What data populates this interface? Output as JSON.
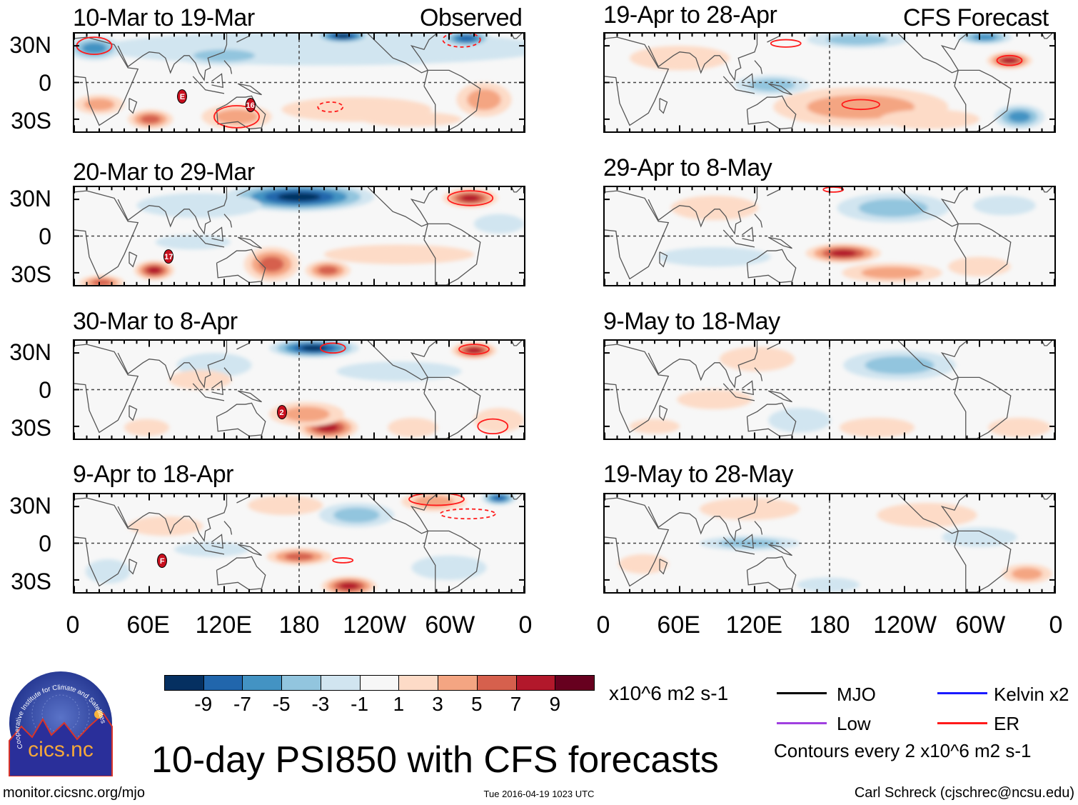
{
  "figure_title": "10-day PSI850 with CFS forecasts",
  "columns": {
    "left_label": "Observed",
    "right_label": "CFS Forecast"
  },
  "panels_left": [
    {
      "title": "10-Mar to 19-Mar",
      "storms": [
        "E",
        "16"
      ]
    },
    {
      "title": "20-Mar to 29-Mar",
      "storms": [
        "17"
      ]
    },
    {
      "title": "30-Mar to 8-Apr",
      "storms": [
        "2"
      ]
    },
    {
      "title": "9-Apr to 18-Apr",
      "storms": [
        "F"
      ]
    }
  ],
  "panels_right": [
    {
      "title": "19-Apr to 28-Apr"
    },
    {
      "title": "29-Apr to 8-May"
    },
    {
      "title": "9-May to 18-May"
    },
    {
      "title": "19-May to 28-May"
    }
  ],
  "y_ticks": [
    "30N",
    "0",
    "30S"
  ],
  "x_ticks": [
    "0",
    "60E",
    "120E",
    "180",
    "120W",
    "60W",
    "0"
  ],
  "colorbar": {
    "labels": [
      "-9",
      "-7",
      "-5",
      "-3",
      "-1",
      "1",
      "3",
      "5",
      "7",
      "9"
    ],
    "colors": [
      "#053061",
      "#2166ac",
      "#4393c3",
      "#92c5de",
      "#d1e5f0",
      "#f7f7f7",
      "#fddbc7",
      "#f4a582",
      "#d6604d",
      "#b2182b",
      "#67001f"
    ],
    "units": "x10^6 m2 s-1"
  },
  "contour_legend": {
    "items": [
      {
        "label": "MJO",
        "color": "#000000"
      },
      {
        "label": "Kelvin x2",
        "color": "#1a1aff"
      },
      {
        "label": "Low",
        "color": "#a040e0"
      },
      {
        "label": "ER",
        "color": "#ff1a1a"
      }
    ],
    "note": "Contours every 2 x10^6 m2 s-1"
  },
  "logo": {
    "arc_text": "Cooperative Institute for Climate and Satellites",
    "name": "cics.nc"
  },
  "footer": {
    "url": "monitor.cicsnc.org/mjo",
    "timestamp": "Tue 2016-04-19 1023 UTC",
    "author": "Carl Schreck (cjschrec@ncsu.edu)"
  }
}
